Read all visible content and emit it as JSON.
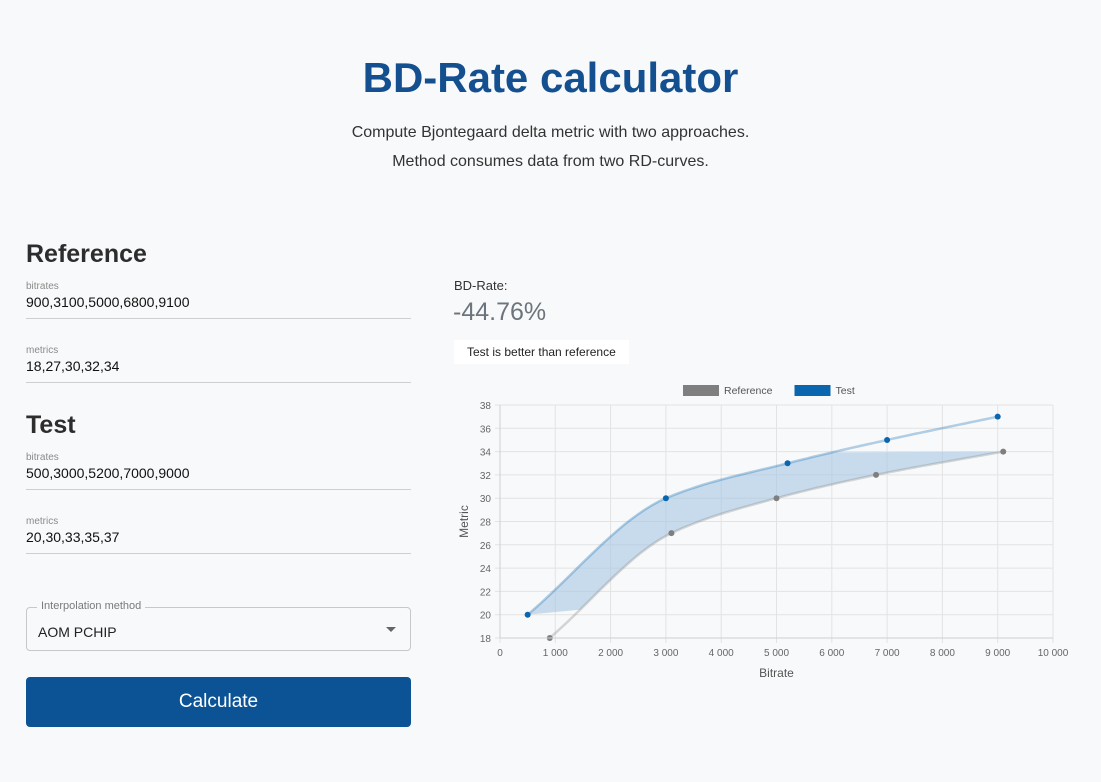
{
  "header": {
    "title": "BD-Rate calculator",
    "subtitle_line1": "Compute Bjontegaard delta metric with two approaches.",
    "subtitle_line2": "Method consumes data from two RD-curves."
  },
  "reference": {
    "heading": "Reference",
    "bitrates_label": "bitrates",
    "bitrates_value": "900,3100,5000,6800,9100",
    "metrics_label": "metrics",
    "metrics_value": "18,27,30,32,34"
  },
  "test": {
    "heading": "Test",
    "bitrates_label": "bitrates",
    "bitrates_value": "500,3000,5200,7000,9000",
    "metrics_label": "metrics",
    "metrics_value": "20,30,33,35,37"
  },
  "interpolation": {
    "label": "Interpolation method",
    "value": "AOM PCHIP"
  },
  "calculate_label": "Calculate",
  "result": {
    "label": "BD-Rate:",
    "value": "-44.76%",
    "badge": "Test is better than reference"
  },
  "colors": {
    "brand": "#145090",
    "button": "#0b5394",
    "reference": "#7f7f7f",
    "test": "#0b66b0",
    "fill": "#a6c7e3"
  },
  "chart_data": {
    "type": "line",
    "xlabel": "Bitrate",
    "ylabel": "Metric",
    "xlim": [
      0,
      10000
    ],
    "ylim": [
      18,
      38
    ],
    "xticks": [
      0,
      1000,
      2000,
      3000,
      4000,
      5000,
      6000,
      7000,
      8000,
      9000,
      10000
    ],
    "xtick_labels": [
      "0",
      "1 000",
      "2 000",
      "3 000",
      "4 000",
      "5 000",
      "6 000",
      "7 000",
      "8 000",
      "9 000",
      "10 000"
    ],
    "yticks": [
      18,
      20,
      22,
      24,
      26,
      28,
      30,
      32,
      34,
      36,
      38
    ],
    "grid": true,
    "legend_position": "top",
    "series": [
      {
        "name": "Reference",
        "x": [
          900,
          3100,
          5000,
          6800,
          9100
        ],
        "y": [
          18,
          27,
          30,
          32,
          34
        ]
      },
      {
        "name": "Test",
        "x": [
          500,
          3000,
          5200,
          7000,
          9000
        ],
        "y": [
          20,
          30,
          33,
          35,
          37
        ]
      }
    ],
    "shaded_region": {
      "y_range": [
        20,
        34
      ]
    }
  }
}
